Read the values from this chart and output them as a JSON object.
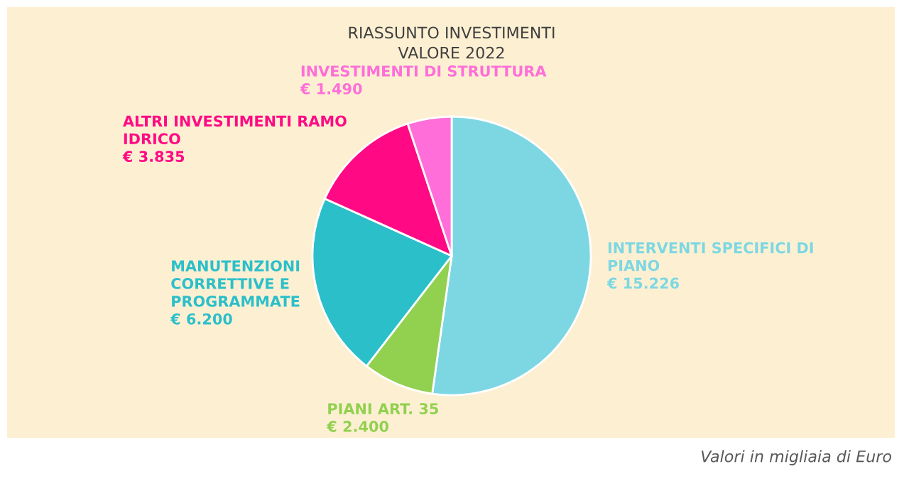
{
  "chart_data": {
    "type": "pie",
    "title": "RIASSUNTO INVESTIMENTI\nVALORE 2022",
    "categories": [
      "INTERVENTI SPECIFICI DI\nPIANO",
      "PIANI ART. 35",
      "MANUTENZIONI\nCORRETTIVE E\nPROGRAMMATE",
      "ALTRI INVESTIMENTI RAMO\nIDRICO",
      "INVESTIMENTI DI STRUTTURA"
    ],
    "values": [
      15226,
      2400,
      6200,
      3835,
      1490
    ],
    "value_labels": [
      "€ 15.226",
      "€ 2.400",
      "€ 6.200",
      "€ 3.835",
      "€ 1.490"
    ],
    "colors": [
      "#7dd7e3",
      "#92d050",
      "#2bbfca",
      "#ff0a84",
      "#ff6ed9"
    ],
    "annotations": [
      "Valori in migliaia di Euro"
    ]
  }
}
